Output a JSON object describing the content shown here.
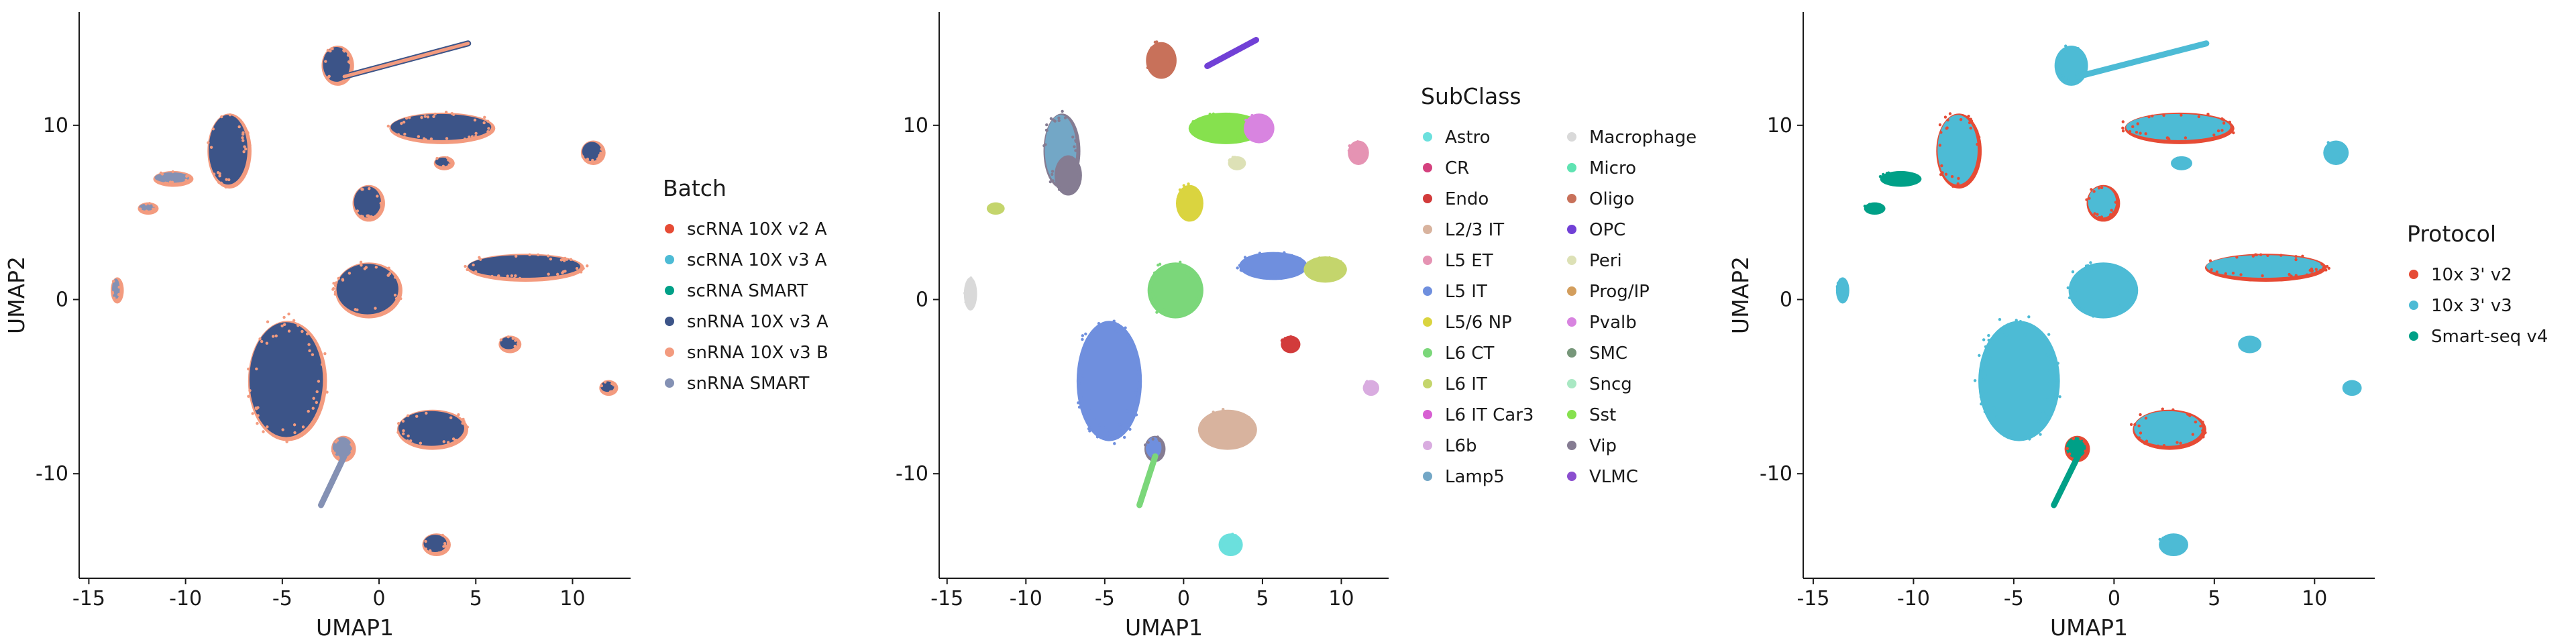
{
  "chart_data": [
    {
      "type": "scatter",
      "title": "",
      "xlabel": "UMAP1",
      "ylabel": "UMAP2",
      "xlim": [
        -15.5,
        13
      ],
      "ylim": [
        -16,
        16.5
      ],
      "xticks": [
        -15,
        -10,
        -5,
        0,
        5,
        10
      ],
      "yticks": [
        -10,
        0,
        10
      ],
      "grid": false,
      "legend": {
        "title": "Batch",
        "placement": "right",
        "columns": 1
      },
      "series": [
        {
          "name": "scRNA 10X v2 A",
          "color": "#E64B35"
        },
        {
          "name": "scRNA 10X v3 A",
          "color": "#4DBBD5"
        },
        {
          "name": "scRNA SMART",
          "color": "#00A087"
        },
        {
          "name": "snRNA 10X v3 A",
          "color": "#3C5488"
        },
        {
          "name": "snRNA 10X v3 B",
          "color": "#F39B7F"
        },
        {
          "name": "snRNA SMART",
          "color": "#8491B4"
        }
      ],
      "clusters": [
        {
          "x": -7.8,
          "y": 8.6,
          "rx": 1.0,
          "ry": 2.0,
          "series": 3,
          "edge": 4
        },
        {
          "x": 3.2,
          "y": 9.9,
          "rx": 2.6,
          "ry": 0.75,
          "series": 3,
          "edge": 4
        },
        {
          "x": 7.5,
          "y": 1.9,
          "rx": 2.9,
          "ry": 0.65,
          "series": 3,
          "edge": 4
        },
        {
          "x": -0.6,
          "y": 0.6,
          "rx": 1.6,
          "ry": 1.45,
          "series": 3,
          "edge": 4
        },
        {
          "x": -4.8,
          "y": -4.6,
          "rx": 1.9,
          "ry": 3.3,
          "series": 3,
          "edge": 4
        },
        {
          "x": 2.7,
          "y": -7.4,
          "rx": 1.7,
          "ry": 1.0,
          "series": 3,
          "edge": 4
        },
        {
          "x": -0.6,
          "y": 5.6,
          "rx": 0.7,
          "ry": 0.9,
          "series": 3,
          "edge": 4
        },
        {
          "x": -2.2,
          "y": 13.5,
          "rx": 0.7,
          "ry": 1.0,
          "series": 3,
          "edge": 4
        },
        {
          "x": 11.0,
          "y": 8.5,
          "rx": 0.5,
          "ry": 0.55,
          "series": 3,
          "edge": 4
        },
        {
          "x": 2.9,
          "y": -14.0,
          "rx": 0.6,
          "ry": 0.5,
          "series": 3,
          "edge": 4
        },
        {
          "x": -1.9,
          "y": -8.5,
          "rx": 0.5,
          "ry": 0.6,
          "series": 5,
          "edge": 4
        },
        {
          "x": -13.6,
          "y": 0.6,
          "rx": 0.2,
          "ry": 0.6,
          "series": 5,
          "edge": 4
        },
        {
          "x": -10.7,
          "y": 7.0,
          "rx": 0.9,
          "ry": 0.3,
          "series": 5,
          "edge": 4
        },
        {
          "x": -12.0,
          "y": 5.3,
          "rx": 0.4,
          "ry": 0.2,
          "series": 5,
          "edge": 4
        },
        {
          "x": 11.8,
          "y": -5.0,
          "rx": 0.35,
          "ry": 0.3,
          "series": 3,
          "edge": 4
        },
        {
          "x": 6.7,
          "y": -2.5,
          "rx": 0.45,
          "ry": 0.35,
          "series": 3,
          "edge": 4
        },
        {
          "x": 3.3,
          "y": 7.9,
          "rx": 0.4,
          "ry": 0.25,
          "series": 3,
          "edge": 4
        }
      ],
      "streaks": [
        {
          "from": [
            -1.8,
            12.8
          ],
          "to": [
            4.6,
            14.7
          ],
          "series": 4,
          "edge": 3
        },
        {
          "from": [
            -1.8,
            -9.0
          ],
          "to": [
            -3.0,
            -11.8
          ],
          "series": 5,
          "edge": 5
        }
      ]
    },
    {
      "type": "scatter",
      "title": "",
      "xlabel": "UMAP1",
      "ylabel": "",
      "xlim": [
        -15.5,
        13
      ],
      "ylim": [
        -16,
        16.5
      ],
      "xticks": [
        -15,
        -10,
        -5,
        0,
        5,
        10
      ],
      "yticks": [
        -10,
        0,
        10
      ],
      "grid": false,
      "legend": {
        "title": "SubClass",
        "placement": "right",
        "columns": 2
      },
      "series": [
        {
          "name": "Astro",
          "color": "#6BE0DD"
        },
        {
          "name": "CR",
          "color": "#D4417E"
        },
        {
          "name": "Endo",
          "color": "#D23B3B"
        },
        {
          "name": "L2/3 IT",
          "color": "#D8B39E"
        },
        {
          "name": "L5 ET",
          "color": "#E593B3"
        },
        {
          "name": "L5 IT",
          "color": "#6F8FDE"
        },
        {
          "name": "L5/6 NP",
          "color": "#DAD43F"
        },
        {
          "name": "L6 CT",
          "color": "#7BD77A"
        },
        {
          "name": "L6 IT",
          "color": "#C4D56C"
        },
        {
          "name": "L6 IT Car3",
          "color": "#D75FD2"
        },
        {
          "name": "L6b",
          "color": "#D9ACE0"
        },
        {
          "name": "Lamp5",
          "color": "#73A7C6"
        },
        {
          "name": "Macrophage",
          "color": "#D9D9D9"
        },
        {
          "name": "Micro",
          "color": "#5FE3B2"
        },
        {
          "name": "Oligo",
          "color": "#C8715A"
        },
        {
          "name": "OPC",
          "color": "#7140D6"
        },
        {
          "name": "Peri",
          "color": "#DDE1B6"
        },
        {
          "name": "Prog/IP",
          "color": "#D39E5D"
        },
        {
          "name": "Pvalb",
          "color": "#D884E0"
        },
        {
          "name": "SMC",
          "color": "#77977A"
        },
        {
          "name": "Sncg",
          "color": "#A9E8C3"
        },
        {
          "name": "Sst",
          "color": "#86E14E"
        },
        {
          "name": "Vip",
          "color": "#857C92"
        },
        {
          "name": "VLMC",
          "color": "#8B4ECF"
        }
      ],
      "clusters": [
        {
          "x": -7.8,
          "y": 8.6,
          "rx": 1.0,
          "ry": 2.0,
          "series": 11,
          "edge": 22
        },
        {
          "x": -7.4,
          "y": 7.2,
          "rx": 0.7,
          "ry": 1.0,
          "series": 22,
          "edge": 22
        },
        {
          "x": 2.6,
          "y": 9.9,
          "rx": 2.2,
          "ry": 0.75,
          "series": 21,
          "edge": 21
        },
        {
          "x": 4.7,
          "y": 9.9,
          "rx": 0.8,
          "ry": 0.7,
          "series": 18,
          "edge": 18
        },
        {
          "x": 5.6,
          "y": 2.0,
          "rx": 2.0,
          "ry": 0.65,
          "series": 5,
          "edge": 5
        },
        {
          "x": 8.9,
          "y": 1.8,
          "rx": 1.2,
          "ry": 0.6,
          "series": 8,
          "edge": 8
        },
        {
          "x": -0.6,
          "y": 0.6,
          "rx": 1.6,
          "ry": 1.45,
          "series": 7,
          "edge": 7
        },
        {
          "x": -4.8,
          "y": -4.6,
          "rx": 1.9,
          "ry": 3.3,
          "series": 5,
          "edge": 5
        },
        {
          "x": 2.7,
          "y": -7.4,
          "rx": 1.7,
          "ry": 1.0,
          "series": 3,
          "edge": 3
        },
        {
          "x": 0.3,
          "y": 5.6,
          "rx": 0.7,
          "ry": 0.9,
          "series": 6,
          "edge": 6
        },
        {
          "x": -1.5,
          "y": 13.8,
          "rx": 0.8,
          "ry": 0.9,
          "series": 14,
          "edge": 14
        },
        {
          "x": 11.0,
          "y": 8.5,
          "rx": 0.5,
          "ry": 0.55,
          "series": 4,
          "edge": 4
        },
        {
          "x": 2.9,
          "y": -14.0,
          "rx": 0.6,
          "ry": 0.5,
          "series": 0,
          "edge": 0
        },
        {
          "x": -1.9,
          "y": -8.5,
          "rx": 0.5,
          "ry": 0.6,
          "series": 5,
          "edge": 22
        },
        {
          "x": -13.6,
          "y": 0.4,
          "rx": 0.25,
          "ry": 0.8,
          "series": 12,
          "edge": 12
        },
        {
          "x": -12.0,
          "y": 5.3,
          "rx": 0.4,
          "ry": 0.2,
          "series": 8,
          "edge": 8
        },
        {
          "x": 11.8,
          "y": -5.0,
          "rx": 0.35,
          "ry": 0.3,
          "series": 10,
          "edge": 10
        },
        {
          "x": 6.7,
          "y": -2.5,
          "rx": 0.45,
          "ry": 0.35,
          "series": 2,
          "edge": 2
        },
        {
          "x": 3.3,
          "y": 7.9,
          "rx": 0.4,
          "ry": 0.25,
          "series": 16,
          "edge": 16
        }
      ],
      "streaks": [
        {
          "from": [
            1.5,
            13.4
          ],
          "to": [
            4.6,
            14.9
          ],
          "series": 15,
          "edge": 15
        },
        {
          "from": [
            -1.8,
            -9.0
          ],
          "to": [
            -2.8,
            -11.8
          ],
          "series": 7,
          "edge": 7
        }
      ]
    },
    {
      "type": "scatter",
      "title": "",
      "xlabel": "UMAP1",
      "ylabel": "UMAP2",
      "xlim": [
        -15.5,
        13
      ],
      "ylim": [
        -16,
        16.5
      ],
      "xticks": [
        -15,
        -10,
        -5,
        0,
        5,
        10
      ],
      "yticks": [
        -10,
        0,
        10
      ],
      "grid": false,
      "legend": {
        "title": "Protocol",
        "placement": "right",
        "columns": 1
      },
      "series": [
        {
          "name": "10x 3' v2",
          "color": "#E64B35"
        },
        {
          "name": "10x 3' v3",
          "color": "#4DBBD5"
        },
        {
          "name": "Smart-seq v4",
          "color": "#00A087"
        }
      ],
      "clusters": [
        {
          "x": -7.8,
          "y": 8.6,
          "rx": 1.0,
          "ry": 2.0,
          "series": 1,
          "edge": 0
        },
        {
          "x": 3.2,
          "y": 9.9,
          "rx": 2.6,
          "ry": 0.75,
          "series": 1,
          "edge": 0
        },
        {
          "x": 7.5,
          "y": 1.9,
          "rx": 2.9,
          "ry": 0.65,
          "series": 1,
          "edge": 0
        },
        {
          "x": -0.6,
          "y": 0.6,
          "rx": 1.6,
          "ry": 1.45,
          "series": 1,
          "edge": 1
        },
        {
          "x": -4.8,
          "y": -4.6,
          "rx": 1.9,
          "ry": 3.3,
          "series": 1,
          "edge": 1
        },
        {
          "x": 2.7,
          "y": -7.4,
          "rx": 1.7,
          "ry": 1.0,
          "series": 1,
          "edge": 0
        },
        {
          "x": -0.6,
          "y": 5.6,
          "rx": 0.7,
          "ry": 0.9,
          "series": 1,
          "edge": 0
        },
        {
          "x": -2.2,
          "y": 13.5,
          "rx": 0.7,
          "ry": 1.0,
          "series": 1,
          "edge": 1
        },
        {
          "x": 11.0,
          "y": 8.5,
          "rx": 0.5,
          "ry": 0.55,
          "series": 1,
          "edge": 1
        },
        {
          "x": 2.9,
          "y": -14.0,
          "rx": 0.6,
          "ry": 0.5,
          "series": 1,
          "edge": 1
        },
        {
          "x": -1.9,
          "y": -8.5,
          "rx": 0.5,
          "ry": 0.6,
          "series": 2,
          "edge": 0
        },
        {
          "x": -13.6,
          "y": 0.6,
          "rx": 0.2,
          "ry": 0.6,
          "series": 1,
          "edge": 1
        },
        {
          "x": -10.7,
          "y": 7.0,
          "rx": 0.9,
          "ry": 0.3,
          "series": 2,
          "edge": 2
        },
        {
          "x": -12.0,
          "y": 5.3,
          "rx": 0.4,
          "ry": 0.2,
          "series": 2,
          "edge": 2
        },
        {
          "x": 11.8,
          "y": -5.0,
          "rx": 0.35,
          "ry": 0.3,
          "series": 1,
          "edge": 1
        },
        {
          "x": 6.7,
          "y": -2.5,
          "rx": 0.45,
          "ry": 0.35,
          "series": 1,
          "edge": 1
        },
        {
          "x": 3.3,
          "y": 7.9,
          "rx": 0.4,
          "ry": 0.25,
          "series": 1,
          "edge": 1
        }
      ],
      "streaks": [
        {
          "from": [
            -1.8,
            12.8
          ],
          "to": [
            4.6,
            14.7
          ],
          "series": 1,
          "edge": 1
        },
        {
          "from": [
            -1.8,
            -9.0
          ],
          "to": [
            -3.0,
            -11.8
          ],
          "series": 2,
          "edge": 2
        }
      ]
    }
  ]
}
